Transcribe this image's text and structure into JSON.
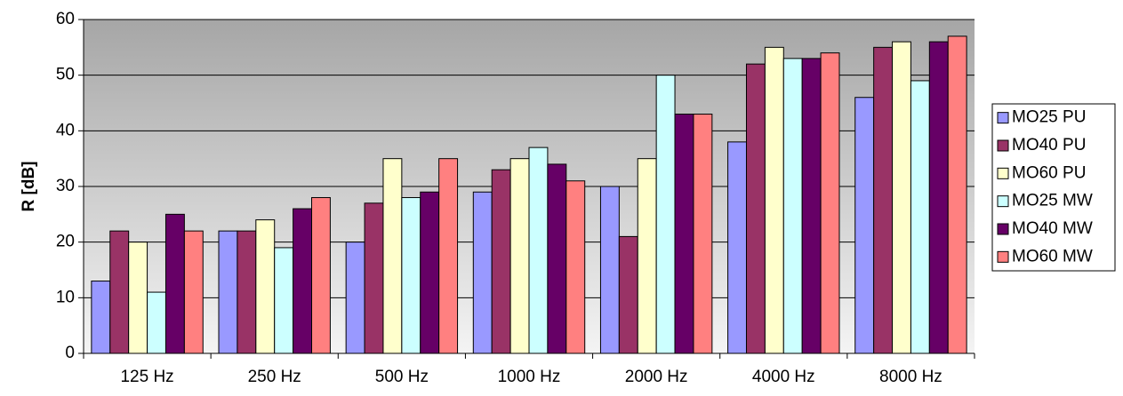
{
  "chart_data": {
    "type": "bar",
    "title": "",
    "xlabel": "",
    "ylabel": "R [dB]",
    "ylim": [
      0,
      60
    ],
    "yticks": [
      "0",
      "10",
      "20",
      "30",
      "40",
      "50",
      "60"
    ],
    "categories": [
      "125 Hz",
      "250 Hz",
      "500 Hz",
      "1000 Hz",
      "2000 Hz",
      "4000 Hz",
      "8000 Hz"
    ],
    "grid": "horizontal major",
    "legend_position": "right",
    "plot_background": "gradient grey",
    "series": [
      {
        "name": "MO25 PU",
        "color": "#9999FF",
        "values": [
          13,
          22,
          20,
          29,
          30,
          38,
          46
        ]
      },
      {
        "name": "MO40 PU",
        "color": "#993366",
        "values": [
          22,
          22,
          27,
          33,
          21,
          52,
          55
        ]
      },
      {
        "name": "MO60 PU",
        "color": "#FFFFCC",
        "values": [
          20,
          24,
          35,
          35,
          35,
          55,
          56
        ]
      },
      {
        "name": "MO25 MW",
        "color": "#CCFFFF",
        "values": [
          11,
          19,
          28,
          37,
          50,
          53,
          49
        ]
      },
      {
        "name": "MO40 MW",
        "color": "#660066",
        "values": [
          25,
          26,
          29,
          34,
          43,
          53,
          56
        ]
      },
      {
        "name": "MO60 MW",
        "color": "#FF8080",
        "values": [
          22,
          28,
          35,
          31,
          43,
          54,
          57
        ]
      }
    ]
  }
}
